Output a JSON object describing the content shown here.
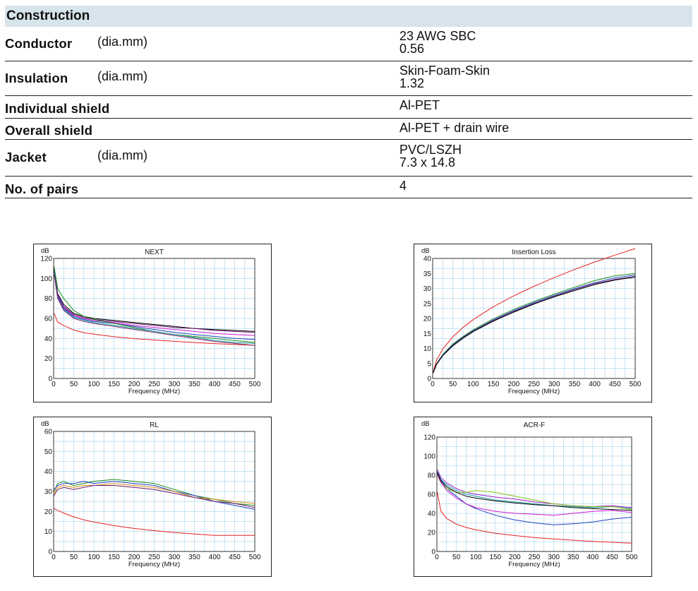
{
  "construction": {
    "title": "Construction",
    "rows": [
      {
        "label": "Conductor",
        "unit": "(dia.mm)",
        "values": [
          "23 AWG SBC",
          "0.56"
        ]
      },
      {
        "label": "Insulation",
        "unit": "(dia.mm)",
        "values": [
          "Skin-Foam-Skin",
          "1.32"
        ]
      },
      {
        "label": "Individual shield",
        "unit": "",
        "values": [
          "Al-PET"
        ]
      },
      {
        "label": "Overall shield",
        "unit": "",
        "values": [
          "Al-PET + drain wire"
        ]
      },
      {
        "label": "Jacket",
        "unit": "(dia.mm)",
        "values": [
          "PVC/LSZH",
          "7.3 x 14.8"
        ]
      },
      {
        "label": "No. of pairs",
        "unit": "",
        "values": [
          "4"
        ]
      }
    ]
  },
  "chart_data": [
    {
      "type": "line",
      "title": "NEXT",
      "ylabel": "dB",
      "xlabel": "Frequency (MHz)",
      "xlim": [
        0,
        500
      ],
      "ylim": [
        0,
        120
      ],
      "xticks": [
        0,
        50,
        100,
        150,
        200,
        250,
        300,
        350,
        400,
        450,
        500
      ],
      "yticks": [
        0,
        20,
        40,
        60,
        80,
        100,
        120
      ],
      "grid": true,
      "x": [
        1,
        10,
        25,
        50,
        75,
        100,
        150,
        200,
        250,
        300,
        350,
        400,
        450,
        500
      ],
      "series": [
        {
          "color": "#e82020",
          "values": [
            65.3,
            56.3,
            52.9,
            48.4,
            45.8,
            44.3,
            41.7,
            39.8,
            38.5,
            37.1,
            35.9,
            34.9,
            34.1,
            33.1
          ]
        },
        {
          "color": "#000000",
          "values": [
            110,
            85,
            74,
            65,
            62,
            60,
            58,
            56,
            54,
            52,
            50,
            49,
            48,
            47
          ]
        },
        {
          "color": "#6a1a6a",
          "values": [
            108,
            84,
            72,
            64,
            61,
            59,
            57,
            55,
            53,
            51,
            50,
            48,
            47,
            46
          ]
        },
        {
          "color": "#d01ad0",
          "values": [
            106,
            83,
            71,
            63,
            60,
            58,
            56,
            53,
            51,
            49,
            47,
            45,
            44,
            43
          ]
        },
        {
          "color": "#2040c0",
          "values": [
            107,
            82,
            70,
            62,
            59,
            57,
            55,
            52,
            49,
            46,
            44,
            42,
            40,
            39
          ]
        },
        {
          "color": "#1a8a1a",
          "values": [
            112,
            90,
            80,
            68,
            62,
            59,
            55,
            51,
            47,
            44,
            42,
            40,
            38,
            36
          ]
        },
        {
          "color": "#1a9aa0",
          "values": [
            105,
            81,
            69,
            61,
            58,
            56,
            53,
            50,
            47,
            44,
            41,
            38,
            36,
            35
          ]
        },
        {
          "color": "#8a2a6a",
          "values": [
            104,
            80,
            68,
            60,
            57,
            55,
            52,
            49,
            46,
            43,
            40,
            37,
            35,
            33
          ]
        }
      ]
    },
    {
      "type": "line",
      "title": "Insertion Loss",
      "ylabel": "dB",
      "xlabel": "Frequency (MHz)",
      "xlim": [
        0,
        500
      ],
      "ylim": [
        0,
        40
      ],
      "xticks": [
        0,
        50,
        100,
        150,
        200,
        250,
        300,
        350,
        400,
        450,
        500
      ],
      "yticks": [
        0,
        5,
        10,
        15,
        20,
        25,
        30,
        35,
        40
      ],
      "grid": true,
      "x": [
        1,
        10,
        25,
        50,
        75,
        100,
        150,
        200,
        250,
        300,
        350,
        400,
        450,
        500
      ],
      "series": [
        {
          "color": "#e82020",
          "values": [
            2.1,
            6.2,
            9.8,
            13.9,
            17.0,
            19.6,
            23.9,
            27.5,
            30.7,
            33.6,
            36.3,
            38.8,
            41.1,
            43.3
          ]
        },
        {
          "color": "#1a8a1a",
          "values": [
            2.0,
            5.0,
            8.0,
            11.5,
            14.0,
            16.2,
            19.9,
            23.0,
            25.7,
            28.1,
            30.4,
            32.6,
            34.2,
            35.0
          ]
        },
        {
          "color": "#2040c0",
          "values": [
            1.9,
            4.9,
            7.8,
            11.2,
            13.7,
            15.9,
            19.5,
            22.6,
            25.3,
            27.7,
            29.9,
            31.9,
            33.5,
            34.5
          ]
        },
        {
          "color": "#6a1a6a",
          "values": [
            1.9,
            4.8,
            7.7,
            11.0,
            13.5,
            15.7,
            19.3,
            22.3,
            25.0,
            27.4,
            29.6,
            31.6,
            33.0,
            34.0
          ]
        },
        {
          "color": "#000000",
          "values": [
            1.8,
            4.7,
            7.6,
            10.9,
            13.4,
            15.6,
            19.1,
            22.1,
            24.8,
            27.2,
            29.3,
            31.3,
            32.8,
            33.8
          ]
        }
      ]
    },
    {
      "type": "line",
      "title": "RL",
      "ylabel": "dB",
      "xlabel": "Frequency (MHz)",
      "xlim": [
        0,
        500
      ],
      "ylim": [
        0,
        60
      ],
      "xticks": [
        0,
        50,
        100,
        150,
        200,
        250,
        300,
        350,
        400,
        450,
        500
      ],
      "yticks": [
        0,
        10,
        20,
        30,
        40,
        50,
        60
      ],
      "grid": true,
      "x": [
        1,
        10,
        25,
        50,
        75,
        100,
        150,
        200,
        250,
        300,
        350,
        400,
        450,
        500
      ],
      "series": [
        {
          "color": "#e82020",
          "values": [
            21.5,
            20.5,
            19.2,
            17.3,
            15.8,
            14.7,
            12.9,
            11.5,
            10.4,
            9.5,
            8.7,
            8.0,
            8.0,
            8.0
          ]
        },
        {
          "color": "#1a8a1a",
          "values": [
            30,
            34,
            35,
            33,
            34,
            35,
            36,
            35,
            34,
            31,
            28,
            26,
            24,
            23
          ]
        },
        {
          "color": "#2040c0",
          "values": [
            31,
            33,
            34,
            34,
            35,
            34,
            35,
            34,
            33,
            30,
            28,
            25,
            23,
            21
          ]
        },
        {
          "color": "#e08a10",
          "values": [
            29,
            32,
            33,
            32,
            33,
            33,
            34,
            33,
            32,
            30,
            27,
            26,
            25,
            24
          ]
        },
        {
          "color": "#6a1a6a",
          "values": [
            28,
            31,
            32,
            31,
            32,
            33,
            33,
            32,
            31,
            29,
            27,
            25,
            24,
            22
          ]
        }
      ]
    },
    {
      "type": "line",
      "title": "ACR-F",
      "ylabel": "dB",
      "xlabel": "Frequency (MHz)",
      "xlim": [
        0,
        500
      ],
      "ylim": [
        0,
        120
      ],
      "xticks": [
        0,
        50,
        100,
        150,
        200,
        250,
        300,
        350,
        400,
        450,
        500
      ],
      "yticks": [
        0,
        20,
        40,
        60,
        80,
        100,
        120
      ],
      "grid": true,
      "x": [
        1,
        10,
        25,
        50,
        75,
        100,
        150,
        200,
        250,
        300,
        350,
        400,
        450,
        500
      ],
      "series": [
        {
          "color": "#e82020",
          "values": [
            62.7,
            42.7,
            34.7,
            28.7,
            25.2,
            22.7,
            19.1,
            16.7,
            14.7,
            13.1,
            11.8,
            10.6,
            9.6,
            8.7
          ]
        },
        {
          "color": "#9a1ad0",
          "values": [
            86,
            78,
            72,
            66,
            62,
            60,
            57,
            55,
            52,
            50,
            48,
            47,
            48,
            46
          ]
        },
        {
          "color": "#1a9aa0",
          "values": [
            84,
            76,
            70,
            64,
            60,
            58,
            54,
            52,
            50,
            48,
            47,
            46,
            47,
            45
          ]
        },
        {
          "color": "#2040c0",
          "values": [
            82,
            74,
            66,
            58,
            50,
            45,
            38,
            33,
            30,
            28,
            29,
            31,
            34,
            36
          ]
        },
        {
          "color": "#8ac01a",
          "values": [
            80,
            72,
            66,
            62,
            62,
            64,
            62,
            58,
            54,
            50,
            48,
            47,
            47,
            44
          ]
        },
        {
          "color": "#000000",
          "values": [
            83,
            75,
            68,
            62,
            58,
            56,
            53,
            51,
            49,
            48,
            46,
            45,
            44,
            43
          ]
        },
        {
          "color": "#d01ad0",
          "values": [
            81,
            73,
            64,
            56,
            50,
            46,
            42,
            40,
            39,
            38,
            40,
            42,
            43,
            41
          ]
        }
      ]
    }
  ]
}
